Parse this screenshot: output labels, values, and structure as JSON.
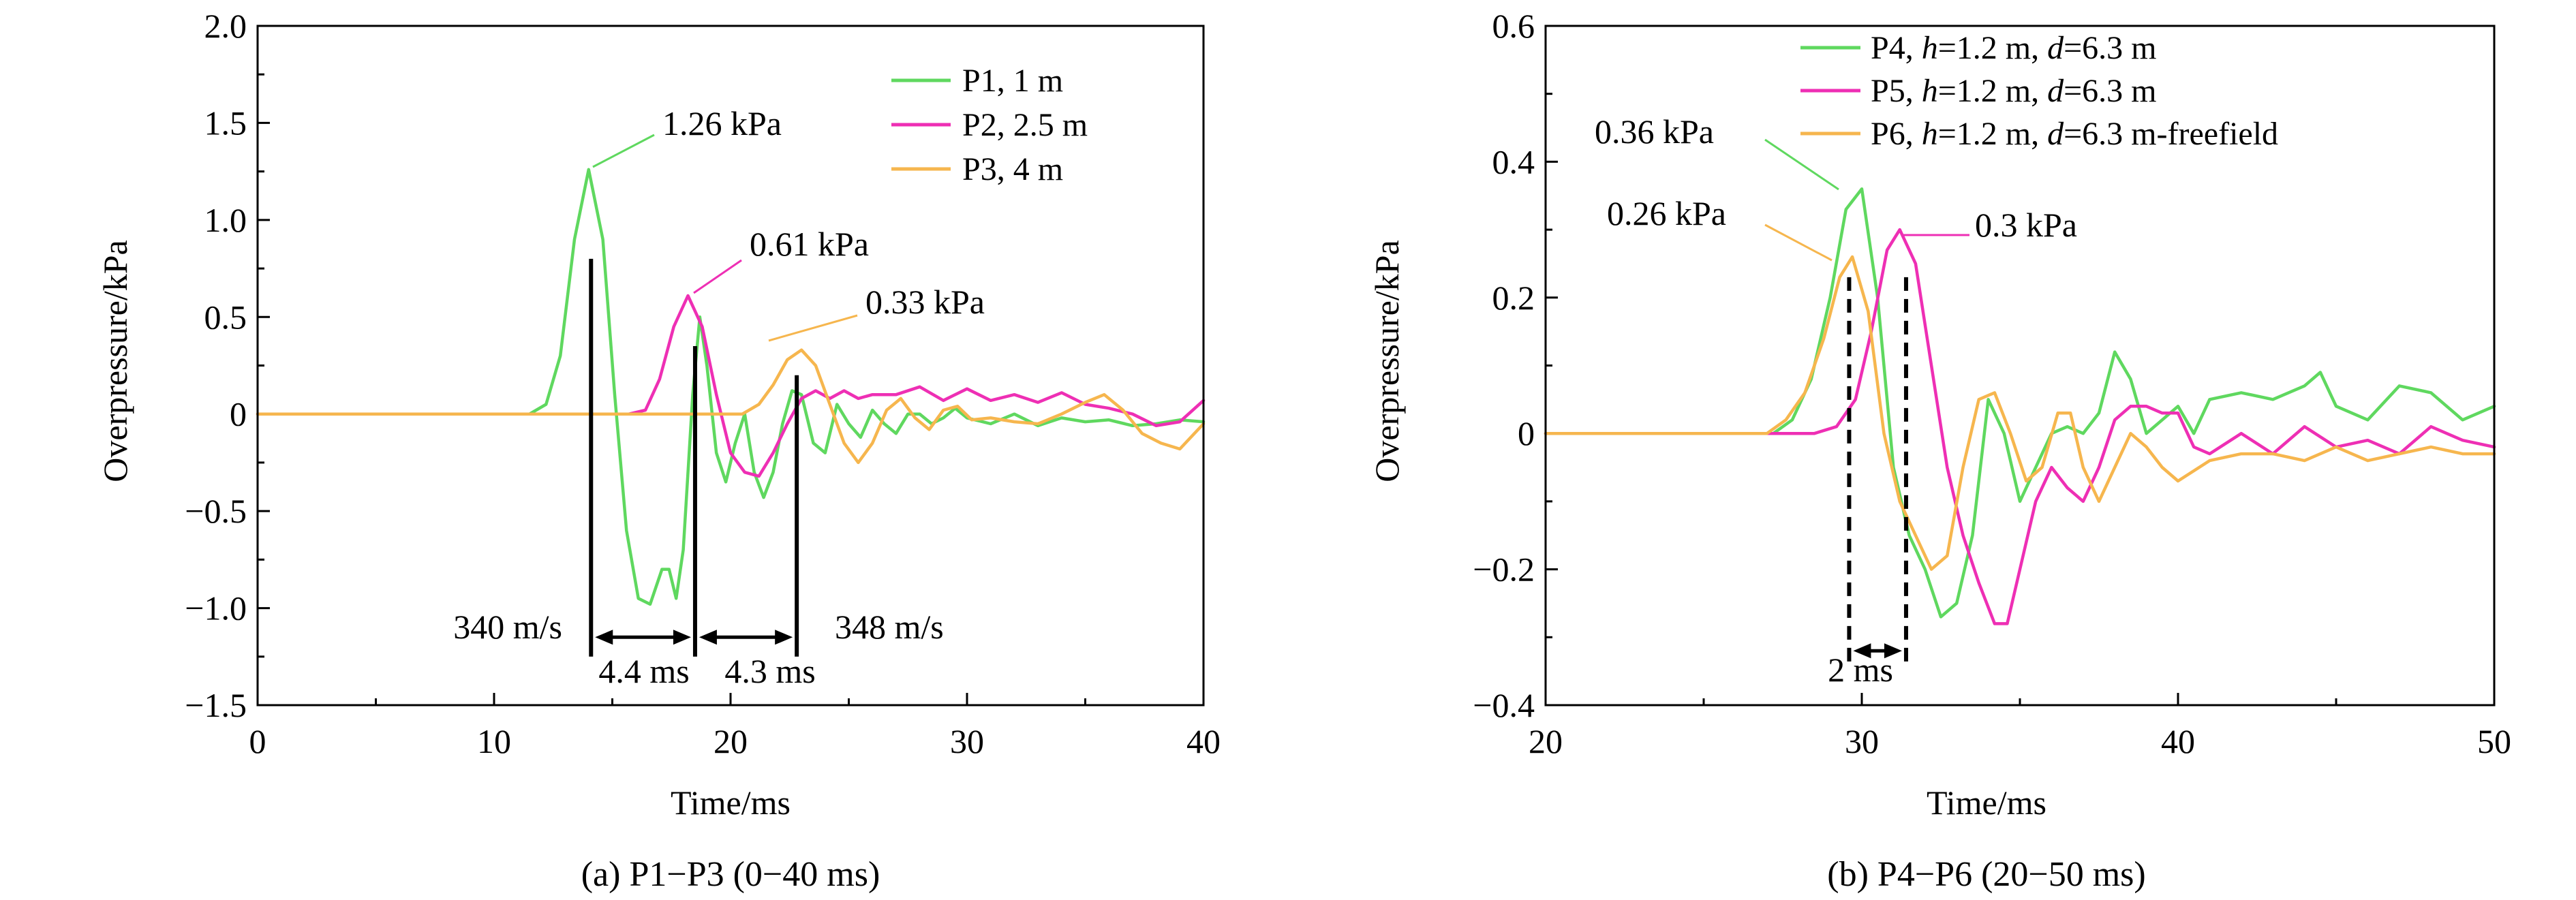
{
  "chart_data": [
    {
      "type": "line",
      "caption": "(a) P1−P3 (0−40 ms)",
      "xlabel": "Time/ms",
      "ylabel": "Overpressure/kPa",
      "xlim": [
        0,
        40
      ],
      "ylim": [
        -1.5,
        2.0
      ],
      "xticks": [
        0,
        10,
        20,
        30,
        40
      ],
      "xtick_labels": [
        "0",
        "10",
        "20",
        "30",
        "40"
      ],
      "yticks": [
        -1.5,
        -1.0,
        -0.5,
        0,
        0.5,
        1.0,
        1.5,
        2.0
      ],
      "ytick_labels": [
        "−1.5",
        "−1.0",
        "−0.5",
        "0",
        "0.5",
        "1.0",
        "1.5",
        "2.0"
      ],
      "legend_position": "top-right",
      "grid": false,
      "series": [
        {
          "name": "P1, 1 m",
          "color": "#5fd85f",
          "x": [
            0,
            11.5,
            12.2,
            12.8,
            13.4,
            14.0,
            14.6,
            15.1,
            15.6,
            16.1,
            16.6,
            17.1,
            17.4,
            17.7,
            18.0,
            18.4,
            18.7,
            19.0,
            19.4,
            19.8,
            20.2,
            20.6,
            21.0,
            21.4,
            21.8,
            22.2,
            22.6,
            23.0,
            23.5,
            24.0,
            24.5,
            25.0,
            25.5,
            26.0,
            26.5,
            27.0,
            27.5,
            28.0,
            28.5,
            29.0,
            29.5,
            30.0,
            31.0,
            32.0,
            33.0,
            34.0,
            35.0,
            36.0,
            37.0,
            38.0,
            39.0,
            40.0
          ],
          "y": [
            0,
            0,
            0.05,
            0.3,
            0.9,
            1.26,
            0.9,
            0.1,
            -0.6,
            -0.95,
            -0.98,
            -0.8,
            -0.8,
            -0.95,
            -0.7,
            0.1,
            0.5,
            0.25,
            -0.2,
            -0.35,
            -0.15,
            0.0,
            -0.3,
            -0.43,
            -0.3,
            -0.05,
            0.12,
            0.1,
            -0.15,
            -0.2,
            0.05,
            -0.05,
            -0.12,
            0.02,
            -0.05,
            -0.1,
            0.0,
            0.0,
            -0.05,
            -0.02,
            0.03,
            -0.02,
            -0.05,
            0.0,
            -0.06,
            -0.02,
            -0.04,
            -0.03,
            -0.06,
            -0.05,
            -0.03,
            -0.04
          ]
        },
        {
          "name": "P2, 2.5 m",
          "color": "#ee2fb4",
          "x": [
            0,
            15.7,
            16.4,
            17.0,
            17.6,
            18.2,
            18.8,
            19.4,
            20.0,
            20.6,
            21.2,
            21.8,
            22.4,
            23.0,
            23.6,
            24.2,
            24.8,
            25.4,
            26.0,
            27.0,
            28.0,
            29.0,
            30.0,
            31.0,
            32.0,
            33.0,
            34.0,
            35.0,
            36.0,
            37.0,
            38.0,
            39.0,
            40.0
          ],
          "y": [
            0,
            0,
            0.02,
            0.18,
            0.45,
            0.61,
            0.45,
            0.1,
            -0.2,
            -0.3,
            -0.32,
            -0.2,
            -0.05,
            0.08,
            0.12,
            0.08,
            0.12,
            0.08,
            0.1,
            0.1,
            0.14,
            0.07,
            0.13,
            0.07,
            0.1,
            0.06,
            0.11,
            0.05,
            0.03,
            0.0,
            -0.06,
            -0.04,
            0.07
          ]
        },
        {
          "name": "P3, 4 m",
          "color": "#f6b64e",
          "x": [
            0,
            20.5,
            21.2,
            21.8,
            22.4,
            23.0,
            23.6,
            24.2,
            24.8,
            25.4,
            26.0,
            26.6,
            27.2,
            27.8,
            28.4,
            29.0,
            29.6,
            30.2,
            31.0,
            32.0,
            33.0,
            34.0,
            35.0,
            35.8,
            36.6,
            37.4,
            38.2,
            39.0,
            40.0
          ],
          "y": [
            0,
            0,
            0.05,
            0.15,
            0.28,
            0.33,
            0.25,
            0.05,
            -0.15,
            -0.25,
            -0.15,
            0.02,
            0.08,
            -0.02,
            -0.08,
            0.02,
            0.04,
            -0.03,
            -0.02,
            -0.04,
            -0.05,
            0.0,
            0.06,
            0.1,
            0.02,
            -0.1,
            -0.15,
            -0.18,
            -0.05
          ]
        }
      ],
      "peak_labels": [
        {
          "text": "1.26 kPa",
          "color": "#5fd85f",
          "x": 14.0,
          "y": 1.26
        },
        {
          "text": "0.61 kPa",
          "color": "#ee2fb4",
          "x": 18.2,
          "y": 0.61
        },
        {
          "text": "0.33 kPa",
          "color": "#f6b64e",
          "x": 23.0,
          "y": 0.33
        }
      ],
      "markers": [
        {
          "x": 14.1,
          "y_top": 0.8
        },
        {
          "x": 18.5,
          "y_top": 0.35
        },
        {
          "x": 22.8,
          "y_top": 0.2
        }
      ],
      "intervals": [
        {
          "text": "4.4 ms",
          "from": 14.1,
          "to": 18.5
        },
        {
          "text": "4.3 ms",
          "from": 18.5,
          "to": 22.8
        }
      ],
      "velocities": [
        {
          "text": "340 m/s",
          "color": "#ee1c1c"
        },
        {
          "text": "348 m/s",
          "color": "#ee1c1c"
        }
      ]
    },
    {
      "type": "line",
      "caption": "(b) P4−P6 (20−50 ms)",
      "xlabel": "Time/ms",
      "ylabel": "Overpressure/kPa",
      "xlim": [
        20,
        50
      ],
      "ylim": [
        -0.4,
        0.6
      ],
      "xticks": [
        20,
        30,
        40,
        50
      ],
      "xtick_labels": [
        "20",
        "30",
        "40",
        "50"
      ],
      "yticks": [
        -0.4,
        -0.2,
        0,
        0.2,
        0.4,
        0.6
      ],
      "ytick_labels": [
        "−0.4",
        "−0.2",
        "0",
        "0.2",
        "0.4",
        "0.6"
      ],
      "legend_position": "top",
      "grid": false,
      "series": [
        {
          "name_parts": [
            "P4, ",
            "h",
            "=1.2 m, ",
            "d",
            "=6.3 m"
          ],
          "color": "#5fd85f",
          "x": [
            20,
            27.2,
            27.8,
            28.4,
            29.0,
            29.5,
            30.0,
            30.5,
            31.0,
            31.5,
            32.0,
            32.5,
            33.0,
            33.5,
            34.0,
            34.5,
            35.0,
            35.5,
            36.0,
            36.5,
            37.0,
            37.5,
            38.0,
            38.5,
            39.0,
            39.5,
            40.0,
            40.5,
            41.0,
            42.0,
            43.0,
            44.0,
            44.5,
            45.0,
            46.0,
            47.0,
            48.0,
            49.0,
            50.0
          ],
          "y": [
            0,
            0,
            0.02,
            0.08,
            0.2,
            0.33,
            0.36,
            0.2,
            -0.05,
            -0.15,
            -0.2,
            -0.27,
            -0.25,
            -0.15,
            0.05,
            0.0,
            -0.1,
            -0.05,
            0.0,
            0.01,
            0.0,
            0.03,
            0.12,
            0.08,
            0.0,
            0.02,
            0.04,
            0.0,
            0.05,
            0.06,
            0.05,
            0.07,
            0.09,
            0.04,
            0.02,
            0.07,
            0.06,
            0.02,
            0.04
          ]
        },
        {
          "name_parts": [
            "P5, ",
            "h",
            "=1.2 m, ",
            "d",
            "=6.3 m"
          ],
          "color": "#ee2fb4",
          "x": [
            20,
            28.5,
            29.2,
            29.8,
            30.3,
            30.8,
            31.2,
            31.7,
            32.2,
            32.7,
            33.2,
            33.7,
            34.2,
            34.6,
            35.0,
            35.5,
            36.0,
            36.5,
            37.0,
            37.5,
            38.0,
            38.5,
            39.0,
            39.5,
            40.0,
            40.5,
            41.0,
            42.0,
            43.0,
            44.0,
            45.0,
            46.0,
            47.0,
            48.0,
            49.0,
            50.0
          ],
          "y": [
            0,
            0,
            0.01,
            0.05,
            0.15,
            0.27,
            0.3,
            0.25,
            0.1,
            -0.05,
            -0.15,
            -0.22,
            -0.28,
            -0.28,
            -0.2,
            -0.1,
            -0.05,
            -0.08,
            -0.1,
            -0.05,
            0.02,
            0.04,
            0.04,
            0.03,
            0.03,
            -0.02,
            -0.03,
            0.0,
            -0.03,
            0.01,
            -0.02,
            -0.01,
            -0.03,
            0.01,
            -0.01,
            -0.02
          ]
        },
        {
          "name_parts": [
            "P6, ",
            "h",
            "=1.2 m, ",
            "d",
            "=6.3 m-freefield"
          ],
          "color": "#f6b64e",
          "x": [
            20,
            27.0,
            27.6,
            28.2,
            28.8,
            29.3,
            29.7,
            30.2,
            30.7,
            31.2,
            31.7,
            32.2,
            32.7,
            33.2,
            33.7,
            34.2,
            34.7,
            35.2,
            35.7,
            36.2,
            36.6,
            37.0,
            37.5,
            38.0,
            38.5,
            39.0,
            39.5,
            40.0,
            41.0,
            42.0,
            43.0,
            44.0,
            45.0,
            46.0,
            47.0,
            48.0,
            49.0,
            50.0
          ],
          "y": [
            0,
            0,
            0.02,
            0.06,
            0.14,
            0.23,
            0.26,
            0.18,
            0.0,
            -0.1,
            -0.15,
            -0.2,
            -0.18,
            -0.05,
            0.05,
            0.06,
            0.0,
            -0.07,
            -0.05,
            0.03,
            0.03,
            -0.05,
            -0.1,
            -0.05,
            0.0,
            -0.02,
            -0.05,
            -0.07,
            -0.04,
            -0.03,
            -0.03,
            -0.04,
            -0.02,
            -0.04,
            -0.03,
            -0.02,
            -0.03,
            -0.03
          ]
        }
      ],
      "peak_labels": [
        {
          "text": "0.36 kPa",
          "color": "#5fd85f",
          "x": 29.7,
          "y": 0.36
        },
        {
          "text": "0.26 kPa",
          "color": "#f6b64e",
          "x": 29.4,
          "y": 0.26
        },
        {
          "text": "0.3 kPa",
          "color": "#ee2fb4",
          "x": 31.2,
          "y": 0.3
        }
      ],
      "markers": [
        {
          "x": 29.6,
          "y_top": 0.23
        },
        {
          "x": 31.4,
          "y_top": 0.23
        }
      ],
      "intervals": [
        {
          "text": "2 ms",
          "from": 29.6,
          "to": 31.4
        }
      ]
    }
  ]
}
